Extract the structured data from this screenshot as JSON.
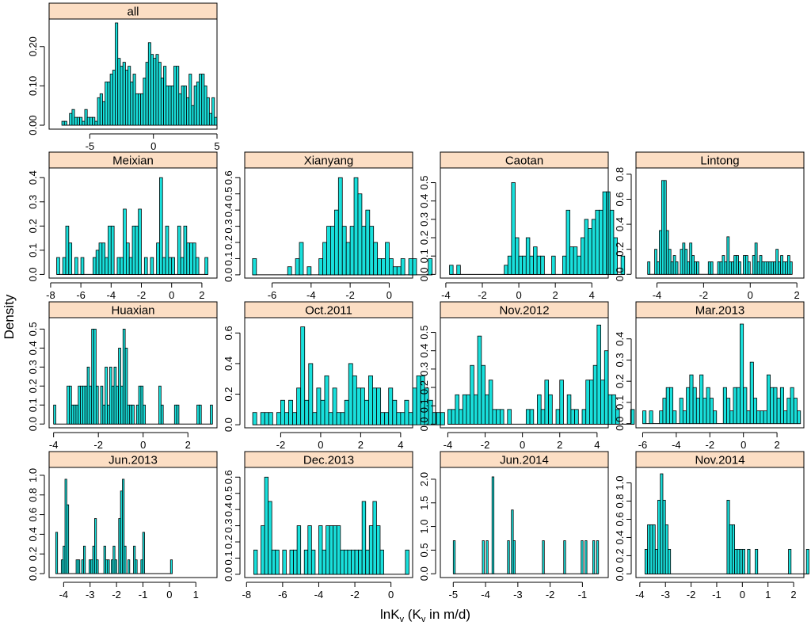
{
  "figure": {
    "ylabel": "Density",
    "xlabel": "lnK_v (K_v in m/d)",
    "xlabel_parts": {
      "main": "lnK",
      "sub": "v",
      "mid": " (K",
      "sub2": "v",
      "end": " in m/d)"
    },
    "colors": {
      "bar_fill": "#19E0DC",
      "bar_stroke": "#000000",
      "strip_fill": "#FCDEC4",
      "strip_stroke": "#000000"
    }
  },
  "chart_data": [
    {
      "type": "bar",
      "title": "all",
      "x_ticks": [
        "-5",
        "0",
        "5"
      ],
      "y_ticks": [
        "0.00",
        "0.10",
        "0.20"
      ],
      "xlim": [
        -8.2,
        5.0
      ],
      "ylim": [
        -0.01,
        0.27
      ],
      "x_tick_vals": [
        -5,
        0,
        5
      ],
      "y_tick_vals": [
        0,
        0.1,
        0.2
      ],
      "bin_start": -7.2,
      "bin_width": 0.2,
      "values": [
        0.01,
        0.01,
        0.0,
        0.03,
        0.04,
        0.02,
        0.02,
        0.02,
        0.01,
        0.04,
        0.02,
        0.02,
        0.02,
        0.01,
        0.07,
        0.08,
        0.06,
        0.11,
        0.11,
        0.13,
        0.14,
        0.26,
        0.17,
        0.15,
        0.16,
        0.14,
        0.15,
        0.11,
        0.13,
        0.08,
        0.08,
        0.08,
        0.12,
        0.16,
        0.21,
        0.18,
        0.17,
        0.18,
        0.16,
        0.12,
        0.15,
        0.1,
        0.1,
        0.1,
        0.15,
        0.15,
        0.08,
        0.1,
        0.1,
        0.07,
        0.13,
        0.05,
        0.1,
        0.11,
        0.13,
        0.13,
        0.1,
        0.07,
        0.03,
        0.07,
        0.02
      ]
    },
    {
      "type": "bar",
      "title": "Meixian",
      "x_ticks": [
        "-8",
        "-6",
        "-4",
        "-2",
        "0",
        "2"
      ],
      "y_ticks": [
        "0.0",
        "0.1",
        "0.2",
        "0.3",
        "0.4"
      ],
      "xlim": [
        -8.1,
        3.0
      ],
      "ylim": [
        -0.015,
        0.44
      ],
      "x_tick_vals": [
        -8,
        -6,
        -4,
        -2,
        0,
        2
      ],
      "y_tick_vals": [
        0,
        0.1,
        0.2,
        0.3,
        0.4
      ],
      "bin_start": -7.6,
      "bin_width": 0.2,
      "values": [
        0.07,
        0.0,
        0.07,
        0.2,
        0.13,
        0.0,
        0.07,
        0.0,
        0.07,
        0.0,
        0.0,
        0.0,
        0.07,
        0.1,
        0.13,
        0.13,
        0.07,
        0.2,
        0.2,
        0.0,
        0.07,
        0.07,
        0.27,
        0.13,
        0.07,
        0.2,
        0.2,
        0.27,
        0.0,
        0.07,
        0.0,
        0.07,
        0.0,
        0.13,
        0.4,
        0.07,
        0.2,
        0.07,
        0.07,
        0.0,
        0.2,
        0.07,
        0.2,
        0.13,
        0.13,
        0.13,
        0.07,
        0.0,
        0.0,
        0.07
      ]
    },
    {
      "type": "bar",
      "title": "Xianyang",
      "x_ticks": [
        "-6",
        "-4",
        "-2",
        "0"
      ],
      "y_ticks": [
        "0.0",
        "0.1",
        "0.2",
        "0.3",
        "0.4",
        "0.5",
        "0.6"
      ],
      "xlim": [
        -7.4,
        1.2
      ],
      "ylim": [
        -0.02,
        0.66
      ],
      "x_tick_vals": [
        -6,
        -4,
        -2,
        0
      ],
      "y_tick_vals": [
        0,
        0.1,
        0.2,
        0.3,
        0.4,
        0.5,
        0.6
      ],
      "bin_start": -7.0,
      "bin_width": 0.2,
      "values": [
        0.1,
        0.0,
        0.0,
        0.0,
        0.0,
        0.0,
        0.0,
        0.0,
        0.0,
        0.05,
        0.0,
        0.1,
        0.2,
        0.0,
        0.05,
        0.0,
        0.0,
        0.1,
        0.2,
        0.3,
        0.3,
        0.4,
        0.6,
        0.3,
        0.2,
        0.3,
        0.6,
        0.5,
        0.3,
        0.4,
        0.3,
        0.2,
        0.1,
        0.1,
        0.2,
        0.1,
        0.05,
        0.05,
        0.1,
        0.0,
        0.1,
        0.1,
        0.0,
        0.0,
        0.0,
        0.1
      ]
    },
    {
      "type": "bar",
      "title": "Caotan",
      "x_ticks": [
        "-4",
        "-2",
        "0",
        "2",
        "4"
      ],
      "y_ticks": [
        "0.0",
        "0.1",
        "0.2",
        "0.3",
        "0.4",
        "0.5"
      ],
      "xlim": [
        -4.3,
        4.9
      ],
      "ylim": [
        -0.02,
        0.58
      ],
      "x_tick_vals": [
        -4,
        -2,
        0,
        2,
        4
      ],
      "y_tick_vals": [
        0,
        0.1,
        0.2,
        0.3,
        0.4,
        0.5
      ],
      "bin_start": -3.8,
      "bin_width": 0.2,
      "values": [
        0.05,
        0.0,
        0.05,
        0.0,
        0.0,
        0.0,
        0.0,
        0.0,
        0.0,
        0.0,
        0.0,
        0.0,
        0.0,
        0.0,
        0.0,
        0.05,
        0.1,
        0.5,
        0.2,
        0.1,
        0.1,
        0.2,
        0.1,
        0.15,
        0.1,
        0.1,
        0.0,
        0.0,
        0.1,
        0.0,
        0.0,
        0.1,
        0.35,
        0.15,
        0.15,
        0.1,
        0.2,
        0.3,
        0.25,
        0.3,
        0.35,
        0.35,
        0.45,
        0.45,
        0.35,
        0.2,
        0.0,
        0.1
      ]
    },
    {
      "type": "bar",
      "title": "Lintong",
      "x_ticks": [
        "-4",
        "-2",
        "0",
        "2"
      ],
      "y_ticks": [
        "0.0",
        "0.2",
        "0.4",
        "0.6",
        "0.8"
      ],
      "xlim": [
        -4.9,
        2.3
      ],
      "ylim": [
        -0.03,
        0.85
      ],
      "x_tick_vals": [
        -4,
        -2,
        0,
        2
      ],
      "y_tick_vals": [
        0,
        0.2,
        0.4,
        0.6,
        0.8
      ],
      "bin_start": -4.4,
      "bin_width": 0.1,
      "values": [
        0.1,
        0.0,
        0.0,
        0.2,
        0.1,
        0.35,
        0.75,
        0.75,
        0.35,
        0.2,
        0.1,
        0.15,
        0.1,
        0.0,
        0.2,
        0.25,
        0.2,
        0.1,
        0.25,
        0.15,
        0.1,
        0.1,
        0.0,
        0.0,
        0.0,
        0.0,
        0.1,
        0.1,
        0.0,
        0.0,
        0.1,
        0.1,
        0.15,
        0.1,
        0.3,
        0.1,
        0.1,
        0.15,
        0.15,
        0.1,
        0.0,
        0.15,
        0.15,
        0.1,
        0.0,
        0.15,
        0.25,
        0.1,
        0.15,
        0.1,
        0.1,
        0.1,
        0.1,
        0.1,
        0.1,
        0.2,
        0.1,
        0.15,
        0.1,
        0.1,
        0.15,
        0.1
      ]
    },
    {
      "type": "bar",
      "title": "Huaxian",
      "x_ticks": [
        "-4",
        "-2",
        "0",
        "2"
      ],
      "y_ticks": [
        "0.0",
        "0.1",
        "0.2",
        "0.3",
        "0.4",
        "0.5"
      ],
      "xlim": [
        -4.2,
        3.3
      ],
      "ylim": [
        -0.02,
        0.56
      ],
      "x_tick_vals": [
        -4,
        -2,
        0,
        2
      ],
      "y_tick_vals": [
        0,
        0.1,
        0.2,
        0.3,
        0.4,
        0.5
      ],
      "bin_start": -4.0,
      "bin_width": 0.1,
      "values": [
        0.1,
        0.0,
        0.0,
        0.0,
        0.0,
        0.0,
        0.2,
        0.2,
        0.1,
        0.1,
        0.1,
        0.2,
        0.2,
        0.2,
        0.2,
        0.3,
        0.2,
        0.5,
        0.5,
        0.2,
        0.0,
        0.2,
        0.1,
        0.3,
        0.1,
        0.3,
        0.2,
        0.3,
        0.2,
        0.4,
        0.2,
        0.5,
        0.4,
        0.1,
        0.1,
        0.1,
        0.0,
        0.1,
        0.2,
        0.2,
        0.1,
        0.0,
        0.0,
        0.0,
        0.0,
        0.0,
        0.0,
        0.2,
        0.1,
        0.0,
        0.0,
        0.0,
        0.0,
        0.0,
        0.1,
        0.1,
        0.0,
        0.0,
        0.0,
        0.0,
        0.0,
        0.0,
        0.0,
        0.0,
        0.1,
        0.1,
        0.0,
        0.0,
        0.0,
        0.0,
        0.1
      ]
    },
    {
      "type": "bar",
      "title": "Oct.2011",
      "x_ticks": [
        "-2",
        "0",
        "2",
        "4"
      ],
      "y_ticks": [
        "0.0",
        "0.2",
        "0.4",
        "0.6"
      ],
      "xlim": [
        -3.8,
        4.6
      ],
      "ylim": [
        -0.02,
        0.7
      ],
      "x_tick_vals": [
        -2,
        0,
        2,
        4
      ],
      "y_tick_vals": [
        0,
        0.2,
        0.4,
        0.6
      ],
      "bin_start": -3.4,
      "bin_width": 0.2,
      "values": [
        0.08,
        0.0,
        0.08,
        0.08,
        0.08,
        0.0,
        0.08,
        0.16,
        0.08,
        0.16,
        0.08,
        0.24,
        0.64,
        0.16,
        0.4,
        0.08,
        0.24,
        0.16,
        0.32,
        0.08,
        0.24,
        0.08,
        0.08,
        0.16,
        0.4,
        0.32,
        0.24,
        0.24,
        0.16,
        0.32,
        0.24,
        0.24,
        0.08,
        0.08,
        0.24,
        0.16,
        0.08,
        0.08,
        0.16,
        0.08,
        0.24,
        0.32,
        0.32,
        0.24,
        0.16,
        0.08,
        0.08,
        0.08
      ]
    },
    {
      "type": "bar",
      "title": "Nov.2012",
      "x_ticks": [
        "-4",
        "-2",
        "0",
        "2",
        "4"
      ],
      "y_ticks": [
        "0.0",
        "0.1",
        "0.2",
        "0.3",
        "0.4",
        "0.5"
      ],
      "xlim": [
        -4.4,
        4.6
      ],
      "ylim": [
        -0.02,
        0.58
      ],
      "x_tick_vals": [
        -4,
        -2,
        0,
        2,
        4
      ],
      "y_tick_vals": [
        0,
        0.1,
        0.2,
        0.3,
        0.4,
        0.5
      ],
      "bin_start": -4.0,
      "bin_width": 0.2,
      "values": [
        0.08,
        0.08,
        0.16,
        0.08,
        0.16,
        0.16,
        0.32,
        0.16,
        0.48,
        0.32,
        0.16,
        0.24,
        0.08,
        0.08,
        0.08,
        0.0,
        0.08,
        0.0,
        0.0,
        0.0,
        0.0,
        0.08,
        0.08,
        0.0,
        0.16,
        0.08,
        0.24,
        0.16,
        0.0,
        0.08,
        0.24,
        0.0,
        0.16,
        0.08,
        0.08,
        0.0,
        0.08,
        0.24,
        0.24,
        0.32,
        0.54,
        0.24,
        0.4,
        0.16,
        0.16,
        0.08,
        0.0,
        0.0,
        0.0,
        0.08
      ]
    },
    {
      "type": "bar",
      "title": "Mar.2013",
      "x_ticks": [
        "-6",
        "-4",
        "-2",
        "0",
        "2"
      ],
      "y_ticks": [
        "0.0",
        "0.1",
        "0.2",
        "0.3",
        "0.4"
      ],
      "xlim": [
        -6.4,
        3.6
      ],
      "ylim": [
        -0.02,
        0.5
      ],
      "x_tick_vals": [
        -6,
        -4,
        -2,
        0,
        2
      ],
      "y_tick_vals": [
        0,
        0.1,
        0.2,
        0.3,
        0.4
      ],
      "bin_start": -6.0,
      "bin_width": 0.2,
      "values": [
        0.06,
        0.0,
        0.06,
        0.0,
        0.0,
        0.06,
        0.12,
        0.17,
        0.17,
        0.06,
        0.0,
        0.12,
        0.06,
        0.17,
        0.23,
        0.17,
        0.12,
        0.23,
        0.12,
        0.17,
        0.12,
        0.06,
        0.0,
        0.0,
        0.17,
        0.12,
        0.06,
        0.17,
        0.17,
        0.47,
        0.17,
        0.06,
        0.29,
        0.12,
        0.06,
        0.06,
        0.06,
        0.23,
        0.17,
        0.17,
        0.12,
        0.17,
        0.06,
        0.12,
        0.17,
        0.12,
        0.06
      ]
    },
    {
      "type": "bar",
      "title": "Jun.2013",
      "x_ticks": [
        "-4",
        "-3",
        "-2",
        "-1",
        "0",
        "1"
      ],
      "y_ticks": [
        "0.0",
        "0.2",
        "0.4",
        "0.6",
        "0.8",
        "1.0"
      ],
      "xlim": [
        -4.55,
        1.8
      ],
      "ylim": [
        -0.04,
        1.08
      ],
      "x_tick_vals": [
        -4,
        -3,
        -2,
        -1,
        0,
        1
      ],
      "y_tick_vals": [
        0,
        0.2,
        0.4,
        0.6,
        0.8,
        1.0
      ],
      "bin_start": -4.3,
      "bin_width": 0.07,
      "values": [
        0.42,
        0.0,
        0.0,
        0.14,
        0.28,
        0.96,
        0.7,
        0.0,
        0.0,
        0.0,
        0.0,
        0.14,
        0.14,
        0.0,
        0.14,
        0.28,
        0.0,
        0.0,
        0.14,
        0.14,
        0.28,
        0.56,
        0.14,
        0.0,
        0.0,
        0.0,
        0.28,
        0.14,
        0.14,
        0.0,
        0.14,
        0.28,
        0.14,
        0.0,
        0.56,
        0.84,
        0.96,
        0.28,
        0.0,
        0.14,
        0.0,
        0.0,
        0.28,
        0.14,
        0.0,
        0.0,
        0.14,
        0.42,
        0.0,
        0.0,
        0.0,
        0.0,
        0.0,
        0.0,
        0.0,
        0.0,
        0.0,
        0.0,
        0.0,
        0.0,
        0.0,
        0.0,
        0.14
      ]
    },
    {
      "type": "bar",
      "title": "Dec.2013",
      "x_ticks": [
        "-8",
        "-6",
        "-4",
        "-2",
        "0"
      ],
      "y_ticks": [
        "0.0",
        "0.1",
        "0.2",
        "0.3",
        "0.4",
        "0.5",
        "0.6"
      ],
      "xlim": [
        -8.1,
        1.2
      ],
      "ylim": [
        -0.02,
        0.66
      ],
      "x_tick_vals": [
        -8,
        -6,
        -4,
        -2,
        0
      ],
      "y_tick_vals": [
        0,
        0.1,
        0.2,
        0.3,
        0.4,
        0.5,
        0.6
      ],
      "bin_start": -7.6,
      "bin_width": 0.2,
      "values": [
        0.15,
        0.0,
        0.3,
        0.6,
        0.45,
        0.15,
        0.15,
        0.0,
        0.15,
        0.0,
        0.15,
        0.15,
        0.3,
        0.0,
        0.15,
        0.3,
        0.15,
        0.0,
        0.3,
        0.15,
        0.3,
        0.3,
        0.3,
        0.3,
        0.15,
        0.15,
        0.15,
        0.15,
        0.15,
        0.15,
        0.45,
        0.15,
        0.3,
        0.45,
        0.3,
        0.15,
        0.0,
        0.0,
        0.0,
        0.0,
        0.0,
        0.0,
        0.15
      ]
    },
    {
      "type": "bar",
      "title": "Jun.2014",
      "x_ticks": [
        "-5",
        "-4",
        "-3",
        "-2",
        "-1"
      ],
      "y_ticks": [
        "0.0",
        "0.5",
        "1.0",
        "1.5",
        "2.0"
      ],
      "xlim": [
        -5.4,
        -0.2
      ],
      "ylim": [
        -0.08,
        2.25
      ],
      "x_tick_vals": [
        -5,
        -4,
        -3,
        -2,
        -1
      ],
      "y_tick_vals": [
        0,
        0.5,
        1.0,
        1.5,
        2.0
      ],
      "bin_start": -5.0,
      "bin_width": 0.06,
      "values": [
        0.7,
        0.0,
        0.0,
        0.0,
        0.0,
        0.0,
        0.0,
        0.0,
        0.0,
        0.0,
        0.0,
        0.0,
        0.0,
        0.0,
        0.0,
        0.7,
        0.0,
        0.7,
        0.0,
        0.0,
        2.05,
        0.0,
        0.0,
        0.0,
        0.0,
        0.0,
        0.0,
        0.0,
        0.7,
        0.0,
        1.35,
        0.7,
        0.0,
        0.0,
        0.0,
        0.0,
        0.0,
        0.0,
        0.0,
        0.0,
        0.0,
        0.0,
        0.0,
        0.0,
        0.0,
        0.0,
        0.7,
        0.0,
        0.0,
        0.0,
        0.0,
        0.0,
        0.0,
        0.0,
        0.0,
        0.0,
        0.0,
        0.7,
        0.0,
        0.0,
        0.0,
        0.0,
        0.0,
        0.0,
        0.0,
        0.0,
        0.7,
        0.0,
        0.7,
        0.0,
        0.0,
        0.0,
        0.7,
        0.0,
        0.7
      ]
    },
    {
      "type": "bar",
      "title": "Nov.2014",
      "x_ticks": [
        "-4",
        "-3",
        "-2",
        "-1",
        "0",
        "1",
        "2"
      ],
      "y_ticks": [
        "0.0",
        "0.2",
        "0.4",
        "0.6",
        "0.8",
        "1.0"
      ],
      "xlim": [
        -4.15,
        2.4
      ],
      "ylim": [
        -0.04,
        1.17
      ],
      "x_tick_vals": [
        -4,
        -3,
        -2,
        -1,
        0,
        1,
        2
      ],
      "y_tick_vals": [
        0,
        0.2,
        0.4,
        0.6,
        0.8,
        1.0
      ],
      "bin_start": -3.8,
      "bin_width": 0.1,
      "values": [
        0.27,
        0.54,
        0.54,
        0.54,
        0.27,
        0.81,
        1.1,
        0.81,
        0.54,
        0.27,
        0.0,
        0.0,
        0.0,
        0.0,
        0.0,
        0.0,
        0.0,
        0.0,
        0.0,
        0.0,
        0.0,
        0.0,
        0.0,
        0.0,
        0.0,
        0.0,
        0.0,
        0.0,
        0.0,
        0.0,
        0.0,
        0.0,
        0.81,
        0.54,
        0.54,
        0.27,
        0.27,
        0.27,
        0.27,
        0.0,
        0.27,
        0.0,
        0.0,
        0.27,
        0.0,
        0.0,
        0.0,
        0.0,
        0.0,
        0.0,
        0.0,
        0.0,
        0.0,
        0.0,
        0.0,
        0.0,
        0.27,
        0.0,
        0.0,
        0.0,
        0.0,
        0.0,
        0.0,
        0.27
      ]
    }
  ]
}
